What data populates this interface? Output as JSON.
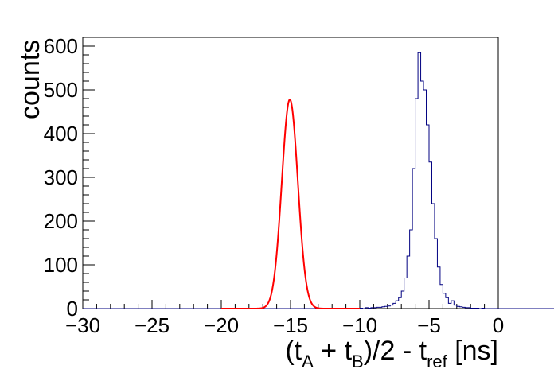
{
  "chart_data": {
    "type": "histogram",
    "xlabel": {
      "open": "(t",
      "sub_a": "A",
      "mid": " + t",
      "sub_b": "B",
      "after": ")/2 - t",
      "sub_ref": "ref",
      "unit": " [ns]"
    },
    "ylabel": "counts",
    "xlim": [
      -30,
      0
    ],
    "ylim": [
      0,
      620
    ],
    "x_ticks": [
      -30,
      -25,
      -20,
      -15,
      -10,
      -5,
      0
    ],
    "x_tick_labels": [
      "−30",
      "−25",
      "−20",
      "−15",
      "−10",
      "−5",
      "0"
    ],
    "y_ticks": [
      0,
      100,
      200,
      300,
      400,
      500,
      600
    ],
    "y_tick_labels": [
      "0",
      "100",
      "200",
      "300",
      "400",
      "500",
      "600"
    ],
    "bin_width": 0.2,
    "histogram": {
      "name": "",
      "color": "#000080",
      "bin_edges_start": -30,
      "counts": [
        0,
        0,
        0,
        0,
        0,
        0,
        0,
        0,
        0,
        0,
        0,
        0,
        0,
        0,
        0,
        0,
        0,
        0,
        0,
        0,
        0,
        0,
        0,
        0,
        0,
        0,
        0,
        0,
        0,
        0,
        0,
        0,
        0,
        0,
        0,
        0,
        0,
        0,
        0,
        0,
        0,
        0,
        0,
        0,
        0,
        0,
        0,
        0,
        0,
        0,
        0,
        0,
        0,
        0,
        0,
        0,
        0,
        0,
        0,
        0,
        0,
        0,
        0,
        0,
        0,
        0,
        0,
        0,
        0,
        0,
        0,
        0,
        0,
        0,
        0,
        0,
        0,
        0,
        0,
        0,
        0,
        0,
        0,
        0,
        0,
        0,
        0,
        0,
        0,
        0,
        0,
        0,
        0,
        0,
        0,
        0,
        1,
        0,
        1,
        1,
        1,
        0,
        2,
        1,
        2,
        2,
        3,
        3,
        4,
        5,
        6,
        8,
        12,
        18,
        25,
        40,
        70,
        120,
        180,
        320,
        480,
        585,
        520,
        500,
        420,
        335,
        240,
        160,
        95,
        55,
        35,
        25,
        12,
        18,
        8,
        5,
        4,
        3,
        2,
        2,
        1,
        1,
        1,
        0,
        1,
        0,
        0,
        0,
        0,
        0,
        0,
        0,
        0,
        0,
        0,
        0,
        0,
        0,
        0,
        0,
        0,
        0,
        0,
        0,
        0,
        0,
        0,
        0,
        0,
        0,
        0,
        0,
        0,
        0,
        0,
        0,
        0,
        0,
        0,
        0,
        0,
        0,
        0,
        0,
        0,
        0,
        0,
        0,
        0,
        0,
        0,
        0,
        0,
        0,
        0,
        0,
        0,
        0,
        0,
        0,
        0
      ]
    },
    "fit": {
      "type": "gaussian",
      "color": "#ff0000",
      "amplitude": 478,
      "mean": -15.05,
      "sigma": 0.58,
      "x_range": [
        -20,
        -10
      ]
    },
    "grid": false,
    "legend": "none"
  }
}
